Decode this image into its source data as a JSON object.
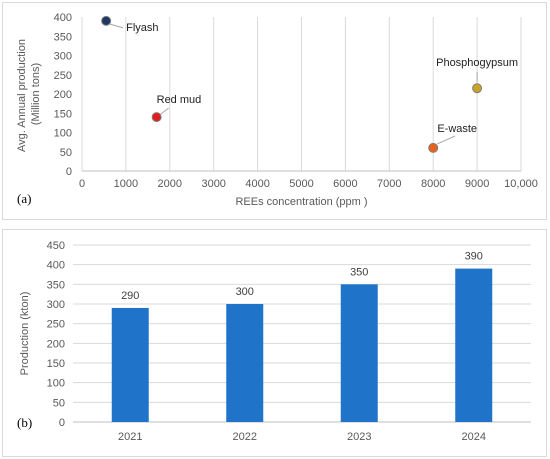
{
  "chart_data": [
    {
      "type": "scatter",
      "panel_label": "(a)",
      "xlabel": "REEs concentration (ppm )",
      "ylabel": [
        "Avg. Annual production",
        "(Million tons)"
      ],
      "xlim": [
        0,
        10000
      ],
      "ylim": [
        0,
        400
      ],
      "xticks": [
        0,
        1000,
        2000,
        3000,
        4000,
        5000,
        6000,
        7000,
        8000,
        9000,
        10000
      ],
      "xtick_labels": [
        "0",
        "1000",
        "2000",
        "3000",
        "4000",
        "5000",
        "6000",
        "7000",
        "8000",
        "9000",
        "10,000"
      ],
      "yticks": [
        0,
        50,
        100,
        150,
        200,
        250,
        300,
        350,
        400
      ],
      "grid": "vertical",
      "points": [
        {
          "label": "Flyash",
          "x": 550,
          "y": 390,
          "color": "#1f3864"
        },
        {
          "label": "Red mud",
          "x": 1700,
          "y": 140,
          "color": "#e02020"
        },
        {
          "label": "Phosphogypsum",
          "x": 9000,
          "y": 215,
          "color": "#c9a227"
        },
        {
          "label": "E-waste",
          "x": 8000,
          "y": 60,
          "color": "#e8621d"
        }
      ]
    },
    {
      "type": "bar",
      "panel_label": "(b)",
      "categories": [
        "2021",
        "2022",
        "2023",
        "2024"
      ],
      "values": [
        290,
        300,
        350,
        390
      ],
      "ylabel": "Production (kton)",
      "ylim": [
        0,
        450
      ],
      "yticks": [
        0,
        50,
        100,
        150,
        200,
        250,
        300,
        350,
        400,
        450
      ],
      "grid": "horizontal",
      "bar_color": "#1f73c9"
    }
  ]
}
